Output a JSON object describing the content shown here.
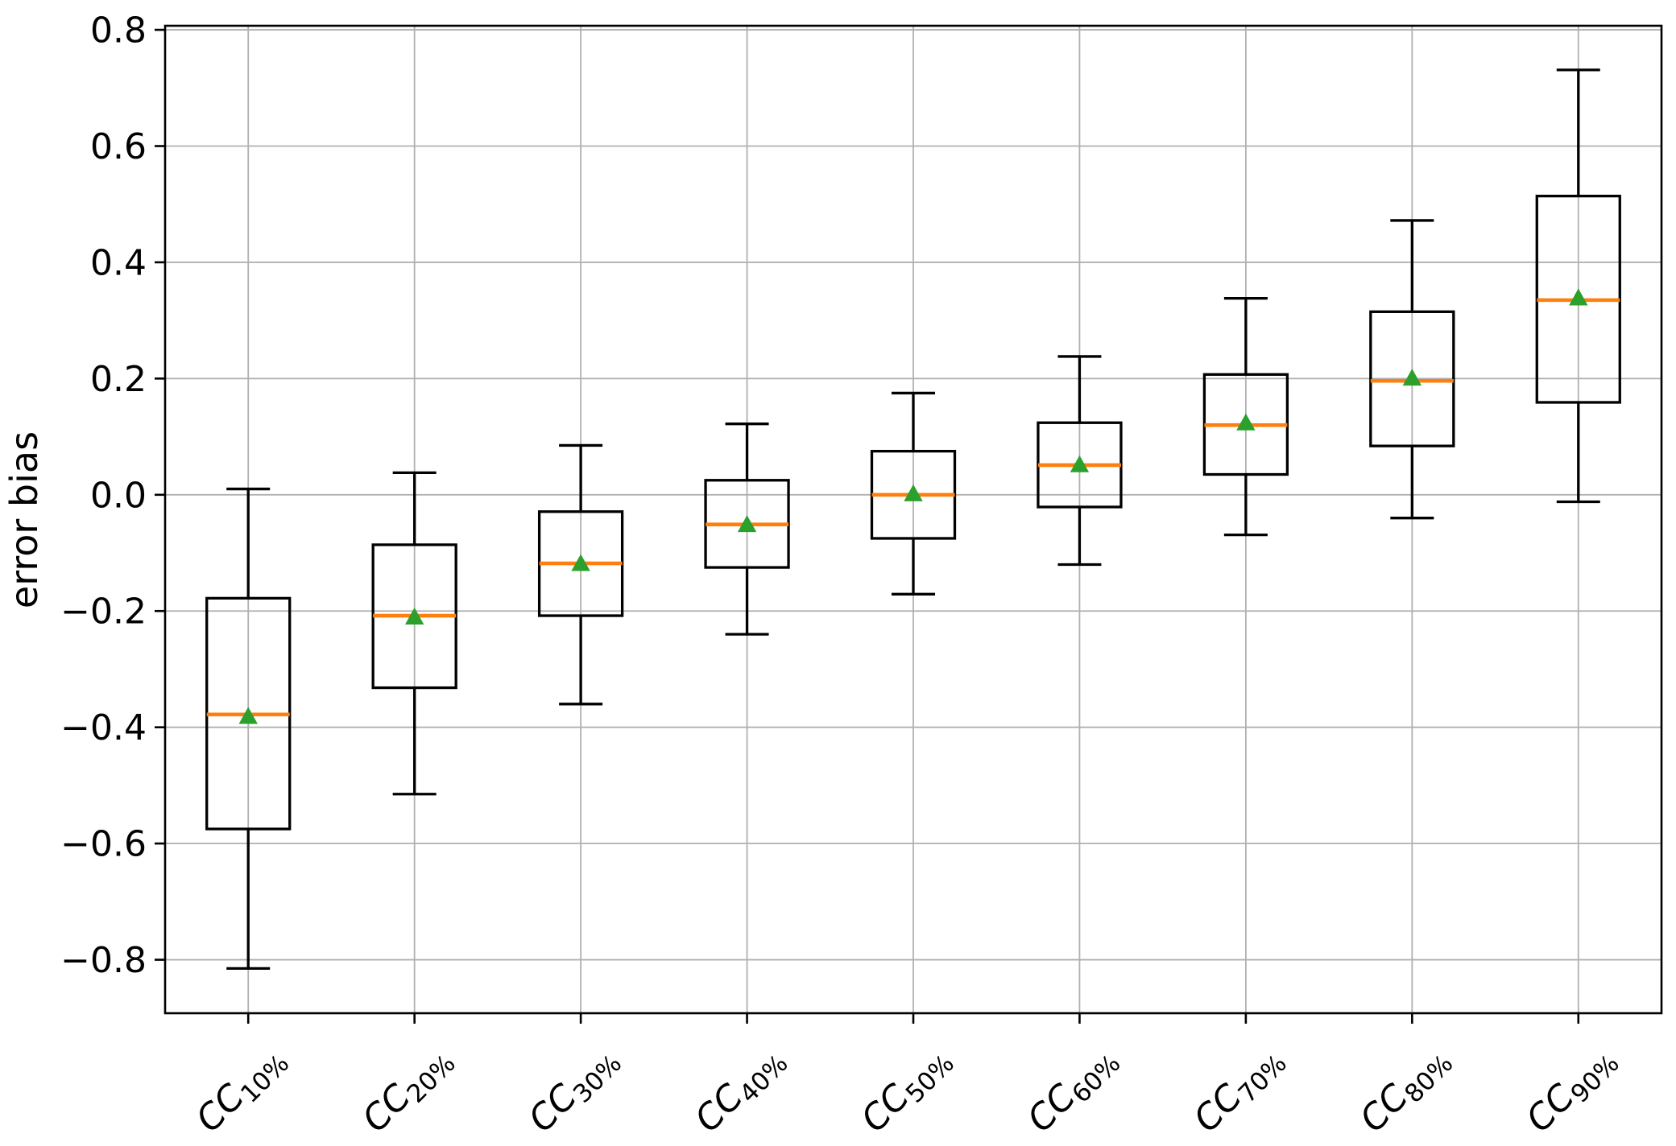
{
  "chart_data": {
    "type": "boxplot",
    "title": "",
    "xlabel": "",
    "ylabel": "error bias",
    "ylim": [
      -0.892,
      0.807
    ],
    "grid": true,
    "legend": "none",
    "yticks": [
      {
        "value": 0.8,
        "label": "0.8"
      },
      {
        "value": 0.6,
        "label": "0.6"
      },
      {
        "value": 0.4,
        "label": "0.4"
      },
      {
        "value": 0.2,
        "label": "0.2"
      },
      {
        "value": 0.0,
        "label": "0.0"
      },
      {
        "value": -0.2,
        "label": "−0.2"
      },
      {
        "value": -0.4,
        "label": "−0.4"
      },
      {
        "value": -0.6,
        "label": "−0.6"
      },
      {
        "value": -0.8,
        "label": "−0.8"
      }
    ],
    "categories": [
      {
        "base": "CC",
        "sub": "10%"
      },
      {
        "base": "CC",
        "sub": "20%"
      },
      {
        "base": "CC",
        "sub": "30%"
      },
      {
        "base": "CC",
        "sub": "40%"
      },
      {
        "base": "CC",
        "sub": "50%"
      },
      {
        "base": "CC",
        "sub": "60%"
      },
      {
        "base": "CC",
        "sub": "70%"
      },
      {
        "base": "CC",
        "sub": "80%"
      },
      {
        "base": "CC",
        "sub": "90%"
      }
    ],
    "boxes": [
      {
        "label": "CC10%",
        "whislo": -0.815,
        "q1": -0.575,
        "med": -0.378,
        "mean": -0.383,
        "q3": -0.178,
        "whishi": 0.01
      },
      {
        "label": "CC20%",
        "whislo": -0.515,
        "q1": -0.332,
        "med": -0.208,
        "mean": -0.212,
        "q3": -0.086,
        "whishi": 0.038
      },
      {
        "label": "CC30%",
        "whislo": -0.36,
        "q1": -0.208,
        "med": -0.118,
        "mean": -0.12,
        "q3": -0.029,
        "whishi": 0.085
      },
      {
        "label": "CC40%",
        "whislo": -0.24,
        "q1": -0.125,
        "med": -0.051,
        "mean": -0.053,
        "q3": 0.025,
        "whishi": 0.122
      },
      {
        "label": "CC50%",
        "whislo": -0.171,
        "q1": -0.075,
        "med": 0.0,
        "mean": 0.0,
        "q3": 0.075,
        "whishi": 0.175
      },
      {
        "label": "CC60%",
        "whislo": -0.12,
        "q1": -0.021,
        "med": 0.051,
        "mean": 0.05,
        "q3": 0.124,
        "whishi": 0.238
      },
      {
        "label": "CC70%",
        "whislo": -0.069,
        "q1": 0.035,
        "med": 0.12,
        "mean": 0.122,
        "q3": 0.207,
        "whishi": 0.338
      },
      {
        "label": "CC80%",
        "whislo": -0.04,
        "q1": 0.084,
        "med": 0.196,
        "mean": 0.199,
        "q3": 0.315,
        "whishi": 0.472
      },
      {
        "label": "CC90%",
        "whislo": -0.012,
        "q1": 0.159,
        "med": 0.335,
        "mean": 0.337,
        "q3": 0.514,
        "whishi": 0.731
      }
    ],
    "colors": {
      "box_line": "#000000",
      "whisker": "#000000",
      "median": "#ff7f0e",
      "mean_marker": "#2ca02c",
      "grid": "#b0b0b0",
      "spine": "#000000",
      "background": "#ffffff"
    }
  }
}
